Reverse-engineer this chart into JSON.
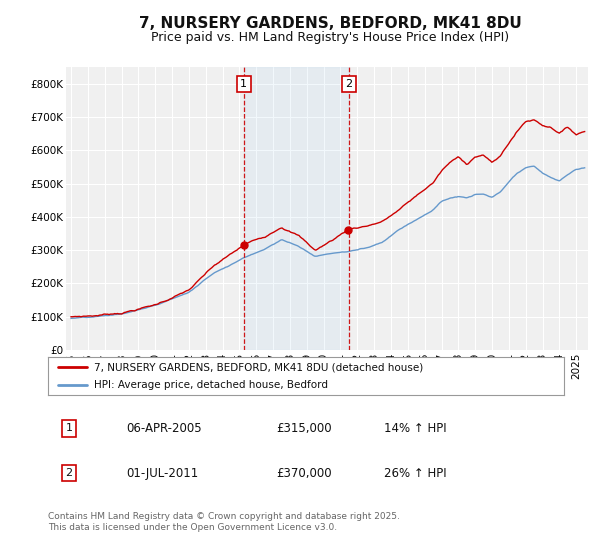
{
  "title": "7, NURSERY GARDENS, BEDFORD, MK41 8DU",
  "subtitle": "Price paid vs. HM Land Registry's House Price Index (HPI)",
  "ylim": [
    0,
    850000
  ],
  "yticks": [
    0,
    100000,
    200000,
    300000,
    400000,
    500000,
    600000,
    700000,
    800000
  ],
  "ytick_labels": [
    "£0",
    "£100K",
    "£200K",
    "£300K",
    "£400K",
    "£500K",
    "£600K",
    "£700K",
    "£800K"
  ],
  "background_color": "#ffffff",
  "plot_bg_color": "#f0f0f0",
  "grid_color": "#ffffff",
  "red_line_color": "#cc0000",
  "blue_line_color": "#6699cc",
  "vline_color": "#cc0000",
  "marker1_x": 2005.26,
  "marker2_x": 2011.5,
  "transaction1_label": "06-APR-2005",
  "transaction2_label": "01-JUL-2011",
  "transaction1_price": "£315,000",
  "transaction2_price": "£370,000",
  "transaction1_hpi": "14% ↑ HPI",
  "transaction2_hpi": "26% ↑ HPI",
  "legend1": "7, NURSERY GARDENS, BEDFORD, MK41 8DU (detached house)",
  "legend2": "HPI: Average price, detached house, Bedford",
  "footer": "Contains HM Land Registry data © Crown copyright and database right 2025.\nThis data is licensed under the Open Government Licence v3.0.",
  "title_fontsize": 11,
  "subtitle_fontsize": 9,
  "tick_fontsize": 7.5
}
